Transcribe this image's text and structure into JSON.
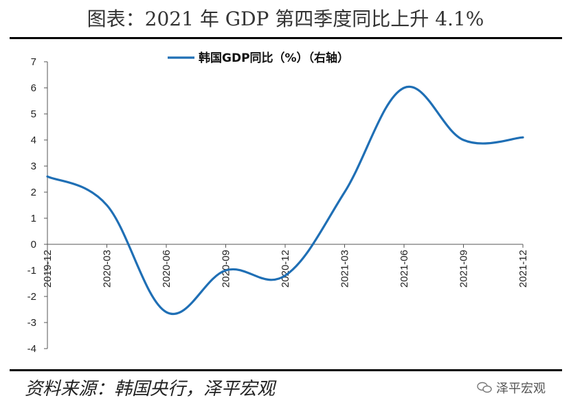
{
  "header": {
    "title": "图表：2021 年 GDP 第四季度同比上升 4.1%"
  },
  "footer": {
    "source": "资料来源：韩国央行，泽平宏观",
    "watermark": "泽平宏观"
  },
  "chart_data": {
    "type": "line",
    "title": "",
    "xlabel": "",
    "ylabel": "",
    "ylim": [
      -4,
      7
    ],
    "yticks": [
      -4,
      -3,
      -2,
      -1,
      0,
      1,
      2,
      3,
      4,
      5,
      6,
      7
    ],
    "categories": [
      "2019-12",
      "2020-03",
      "2020-06",
      "2020-09",
      "2020-12",
      "2021-03",
      "2021-06",
      "2021-09",
      "2021-12"
    ],
    "legend_position": "top-center",
    "grid": false,
    "series": [
      {
        "name": "韩国GDP同比（%）（右轴）",
        "color": "#1f6fb5",
        "values": [
          2.6,
          1.5,
          -2.6,
          -1.0,
          -1.2,
          2.0,
          6.0,
          4.0,
          4.1
        ]
      }
    ]
  }
}
